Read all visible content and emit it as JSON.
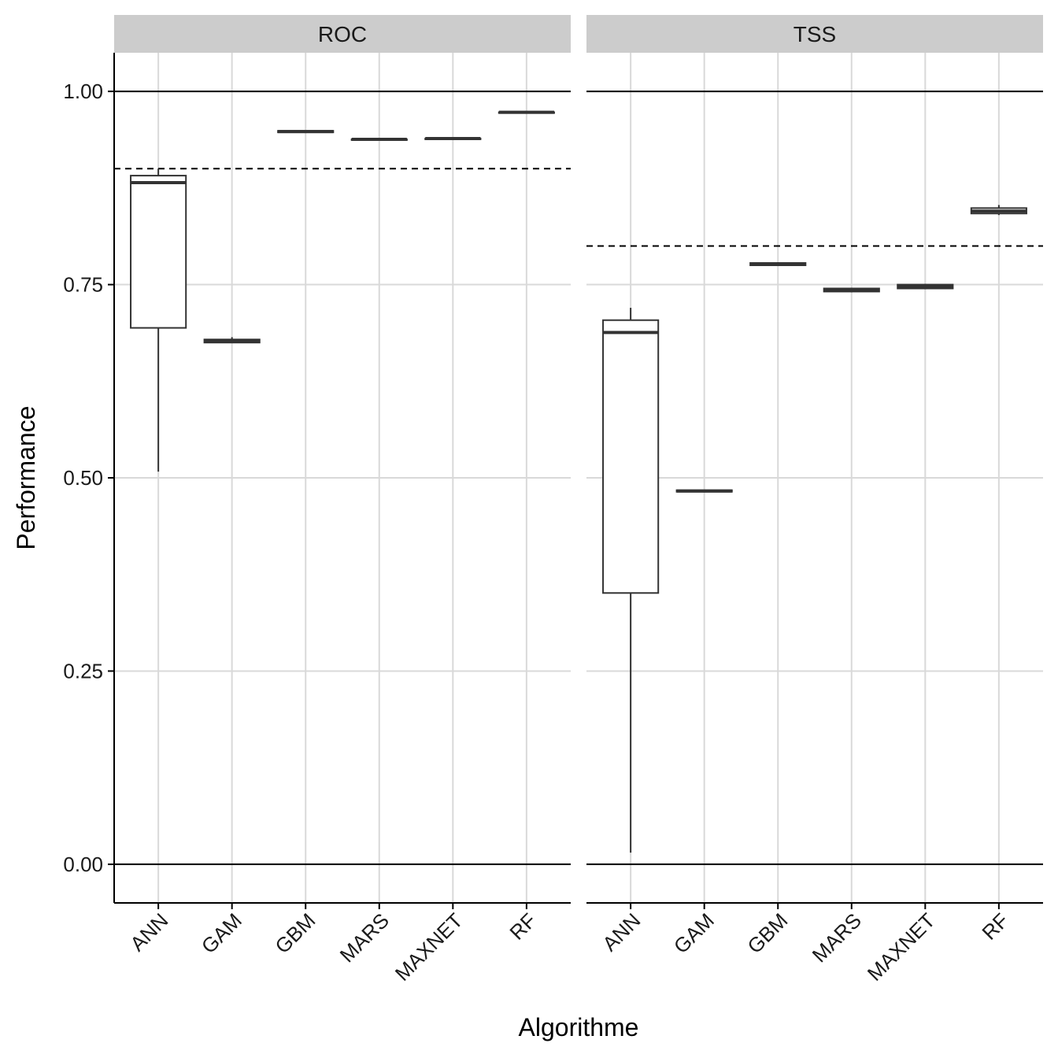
{
  "chart_data": {
    "type": "boxplot",
    "xlabel": "Algorithme",
    "ylabel": "Performance",
    "ylim": [
      -0.05,
      1.05
    ],
    "y_ticks": [
      0.0,
      0.25,
      0.5,
      0.75,
      1.0
    ],
    "y_tick_labels": [
      "0.00",
      "0.25",
      "0.50",
      "0.75",
      "1.00"
    ],
    "categories": [
      "ANN",
      "GAM",
      "GBM",
      "MARS",
      "MAXNET",
      "RF"
    ],
    "grid": true,
    "reference_lines": [
      0.0,
      1.0
    ],
    "colors": {
      "box": "#333333",
      "grid": "#d9d9d9",
      "strip": "#cccccc",
      "axis": "#000000"
    },
    "panels": [
      {
        "name": "ROC",
        "threshold": 0.9,
        "boxes": [
          {
            "category": "ANN",
            "min": 0.508,
            "q1": 0.694,
            "median": 0.882,
            "q3": 0.891,
            "max": 0.9
          },
          {
            "category": "GAM",
            "min": 0.675,
            "q1": 0.675,
            "median": 0.677,
            "q3": 0.679,
            "max": 0.682
          },
          {
            "category": "GBM",
            "min": 0.947,
            "q1": 0.947,
            "median": 0.948,
            "q3": 0.949,
            "max": 0.949
          },
          {
            "category": "MARS",
            "min": 0.937,
            "q1": 0.937,
            "median": 0.938,
            "q3": 0.938,
            "max": 0.939
          },
          {
            "category": "MAXNET",
            "min": 0.938,
            "q1": 0.938,
            "median": 0.939,
            "q3": 0.939,
            "max": 0.94
          },
          {
            "category": "RF",
            "min": 0.972,
            "q1": 0.972,
            "median": 0.973,
            "q3": 0.973,
            "max": 0.974
          }
        ]
      },
      {
        "name": "TSS",
        "threshold": 0.8,
        "boxes": [
          {
            "category": "ANN",
            "min": 0.015,
            "q1": 0.351,
            "median": 0.688,
            "q3": 0.704,
            "max": 0.72
          },
          {
            "category": "GAM",
            "min": 0.482,
            "q1": 0.482,
            "median": 0.483,
            "q3": 0.484,
            "max": 0.484
          },
          {
            "category": "GBM",
            "min": 0.775,
            "q1": 0.775,
            "median": 0.776,
            "q3": 0.778,
            "max": 0.779
          },
          {
            "category": "MARS",
            "min": 0.74,
            "q1": 0.741,
            "median": 0.743,
            "q3": 0.745,
            "max": 0.746
          },
          {
            "category": "MAXNET",
            "min": 0.744,
            "q1": 0.745,
            "median": 0.747,
            "q3": 0.75,
            "max": 0.751
          },
          {
            "category": "RF",
            "min": 0.84,
            "q1": 0.842,
            "median": 0.845,
            "q3": 0.849,
            "max": 0.853
          }
        ]
      }
    ]
  }
}
